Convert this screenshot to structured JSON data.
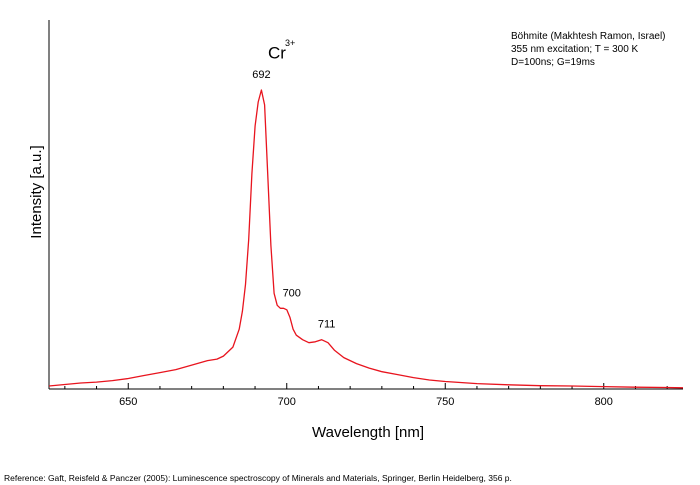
{
  "chart_data": {
    "type": "line",
    "xlabel": "Wavelength [nm]",
    "ylabel": "Intensity [a.u.]",
    "xlim": [
      625,
      825
    ],
    "ylim": [
      0,
      1.0
    ],
    "x_ticks": [
      650,
      700,
      750,
      800
    ],
    "y_ticks_shown": false,
    "grid": false,
    "series": [
      {
        "color": "#e8141e",
        "x": [
          625,
          630,
          635,
          640,
          645,
          650,
          655,
          660,
          665,
          670,
          675,
          678,
          680,
          683,
          685,
          686,
          687,
          688,
          689,
          690,
          691,
          692,
          693,
          694,
          695,
          696,
          697,
          698,
          699,
          700,
          701,
          702,
          703,
          705,
          707,
          709,
          711,
          713,
          715,
          718,
          722,
          726,
          730,
          735,
          740,
          745,
          750,
          760,
          770,
          780,
          790,
          800,
          810,
          820,
          825
        ],
        "y": [
          0.01,
          0.015,
          0.02,
          0.023,
          0.028,
          0.035,
          0.045,
          0.055,
          0.065,
          0.08,
          0.095,
          0.1,
          0.11,
          0.14,
          0.2,
          0.26,
          0.35,
          0.5,
          0.72,
          0.88,
          0.96,
          1.0,
          0.95,
          0.72,
          0.48,
          0.32,
          0.28,
          0.27,
          0.27,
          0.265,
          0.24,
          0.2,
          0.18,
          0.165,
          0.155,
          0.158,
          0.165,
          0.155,
          0.13,
          0.105,
          0.085,
          0.07,
          0.058,
          0.048,
          0.038,
          0.03,
          0.025,
          0.018,
          0.014,
          0.011,
          0.01,
          0.008,
          0.006,
          0.005,
          0.004
        ]
      }
    ],
    "peak_labels": [
      {
        "text": "692",
        "x": 692,
        "y": 1.0
      },
      {
        "text": "700",
        "x": 700,
        "y": 0.27
      },
      {
        "text": "711",
        "x": 711,
        "y": 0.165
      }
    ]
  },
  "ion_label": {
    "base": "Cr",
    "sup": "3+"
  },
  "info_lines": [
    "Böhmite (Makhtesh Ramon, Israel)",
    "355 nm excitation; T = 300 K",
    "D=100ns; G=19ms"
  ],
  "reference": "Reference: Gaft, Reisfeld & Panczer (2005): Luminescence spectroscopy of Minerals and Materials, Springer, Berlin Heidelberg, 356 p."
}
